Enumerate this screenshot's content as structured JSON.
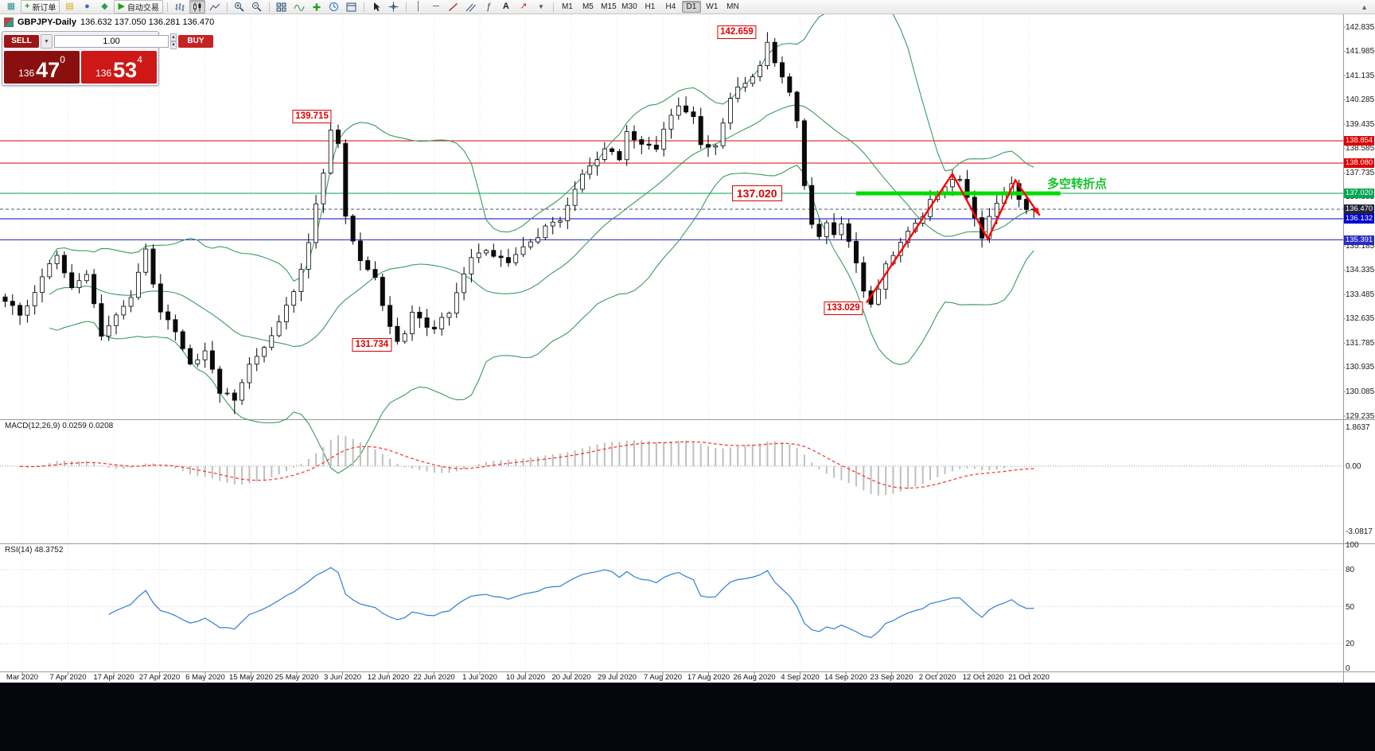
{
  "toolbar": {
    "new_order_label": "新订单",
    "autotrading_label": "自动交易",
    "timeframes": [
      "M1",
      "M5",
      "M15",
      "M30",
      "H1",
      "H4",
      "D1",
      "W1",
      "MN"
    ],
    "active_timeframe": "D1"
  },
  "symbol_bar": {
    "title": "GBPJPY-Daily",
    "ohlc": "136.632 137.050 136.281 136.470"
  },
  "trade_panel": {
    "sell_label": "SELL",
    "buy_label": "BUY",
    "volume": "1.00",
    "sell_price": {
      "prefix": "136",
      "main": "47",
      "sup": "0"
    },
    "buy_price": {
      "prefix": "136",
      "main": "53",
      "sup": "4"
    }
  },
  "indicators": {
    "macd_label": "MACD(12,26,9) 0.0259 0.0208",
    "rsi_label": "RSI(14) 48.3752"
  },
  "levels": [
    {
      "price": 138.854,
      "color": "#e00000",
      "type": "line"
    },
    {
      "price": 138.08,
      "color": "#e00000",
      "type": "line"
    },
    {
      "price": 137.02,
      "color": "#00a651",
      "type": "line"
    },
    {
      "price": 136.47,
      "color": "#2e2e4e",
      "type": "current"
    },
    {
      "price": 136.132,
      "color": "#0000cf",
      "type": "line"
    },
    {
      "price": 135.391,
      "color": "#2a2ac8",
      "type": "line"
    }
  ],
  "annotations": {
    "turning_point_text": "多空转折点",
    "callouts": [
      {
        "text": "142.659",
        "i": 102.6,
        "price": 142.659,
        "side": "left",
        "large": false
      },
      {
        "text": "139.715",
        "i": 45.2,
        "price": 139.715,
        "side": "left",
        "large": false
      },
      {
        "text": "137.020",
        "i": 98.0,
        "price": 137.02,
        "side": "right",
        "large": true
      },
      {
        "text": "133.029",
        "i": 117.0,
        "price": 133.029,
        "side": "left",
        "large": false
      },
      {
        "text": "131.734",
        "i": 53.3,
        "price": 131.734,
        "side": "left",
        "large": false
      }
    ],
    "zigzag": [
      {
        "i": 116.4,
        "p": 133.2
      },
      {
        "i": 128.0,
        "p": 137.7
      },
      {
        "i": 132.8,
        "p": 135.42
      },
      {
        "i": 136.5,
        "p": 137.48
      },
      {
        "i": 139.8,
        "p": 136.25
      }
    ],
    "support_bar": {
      "i_start": 115.0,
      "i_end": 142.6,
      "price": 137.02
    }
  },
  "axes": {
    "price_ticks": [
      142.835,
      141.985,
      141.135,
      140.285,
      139.435,
      138.585,
      137.735,
      136.885,
      136.035,
      135.185,
      134.335,
      133.485,
      132.635,
      131.785,
      130.935,
      130.085,
      129.235
    ],
    "macd_ticks": [
      {
        "text": "1.8637",
        "value": 1.8637
      },
      {
        "text": "0.00",
        "value": 0
      },
      {
        "text": "-3.0817",
        "value": -3.0817
      }
    ],
    "rsi_ticks": [
      100,
      80,
      50,
      20,
      0
    ],
    "dates": [
      "Mar 2020",
      "7 Apr 2020",
      "17 Apr 2020",
      "27 Apr 2020",
      "6 May 2020",
      "15 May 2020",
      "25 May 2020",
      "3 Jun 2020",
      "12 Jun 2020",
      "22 Jun 2020",
      "1 Jul 2020",
      "10 Jul 2020",
      "20 Jul 2020",
      "29 Jul 2020",
      "7 Aug 2020",
      "17 Aug 2020",
      "26 Aug 2020",
      "4 Sep 2020",
      "14 Sep 2020",
      "23 Sep 2020",
      "2 Oct 2020",
      "12 Oct 2020",
      "21 Oct 2020"
    ]
  },
  "chart_data": {
    "type": "candlestick",
    "symbol": "GBPJPY",
    "period": "Daily",
    "title": "GBPJPY-Daily",
    "ylim": [
      129.235,
      142.835
    ],
    "candle_count": 140,
    "close_keypoints": [
      [
        0,
        133.3
      ],
      [
        2,
        132.7
      ],
      [
        4,
        133.6
      ],
      [
        6,
        134.5
      ],
      [
        7,
        134.9
      ],
      [
        9,
        133.8
      ],
      [
        11,
        134.2
      ],
      [
        13,
        132.1
      ],
      [
        15,
        132.7
      ],
      [
        17,
        133.4
      ],
      [
        19,
        135.0
      ],
      [
        21,
        132.9
      ],
      [
        23,
        132.2
      ],
      [
        25,
        131.0
      ],
      [
        27,
        131.5
      ],
      [
        29,
        130.1
      ],
      [
        31,
        129.8
      ],
      [
        33,
        131.1
      ],
      [
        35,
        131.7
      ],
      [
        37,
        132.6
      ],
      [
        39,
        133.5
      ],
      [
        41,
        135.3
      ],
      [
        42,
        136.7
      ],
      [
        43,
        137.8
      ],
      [
        44,
        139.2
      ],
      [
        45,
        138.8
      ],
      [
        46,
        136.3
      ],
      [
        47,
        135.3
      ],
      [
        48,
        134.6
      ],
      [
        50,
        134.0
      ],
      [
        51,
        133.0
      ],
      [
        52,
        132.4
      ],
      [
        53,
        131.9
      ],
      [
        54,
        132.1
      ],
      [
        55,
        132.9
      ],
      [
        57,
        132.4
      ],
      [
        58,
        132.3
      ],
      [
        60,
        132.9
      ],
      [
        62,
        134.1
      ],
      [
        63,
        134.8
      ],
      [
        65,
        135.1
      ],
      [
        67,
        134.7
      ],
      [
        68,
        134.5
      ],
      [
        70,
        135.1
      ],
      [
        72,
        135.5
      ],
      [
        73,
        135.9
      ],
      [
        75,
        136.1
      ],
      [
        76,
        136.6
      ],
      [
        78,
        137.6
      ],
      [
        80,
        138.3
      ],
      [
        81,
        138.6
      ],
      [
        83,
        138.2
      ],
      [
        84,
        139.2
      ],
      [
        86,
        138.8
      ],
      [
        88,
        138.5
      ],
      [
        89,
        139.2
      ],
      [
        91,
        140.1
      ],
      [
        93,
        139.6
      ],
      [
        94,
        138.7
      ],
      [
        96,
        138.7
      ],
      [
        97,
        139.5
      ],
      [
        98,
        140.4
      ],
      [
        100,
        140.9
      ],
      [
        102,
        141.5
      ],
      [
        103,
        142.2
      ],
      [
        104,
        141.5
      ],
      [
        105,
        141.0
      ],
      [
        106,
        140.5
      ],
      [
        107,
        139.6
      ],
      [
        108,
        137.2
      ],
      [
        109,
        135.9
      ],
      [
        110,
        135.6
      ],
      [
        111,
        136.1
      ],
      [
        112,
        135.6
      ],
      [
        113,
        135.9
      ],
      [
        114,
        135.4
      ],
      [
        115,
        134.5
      ],
      [
        116,
        133.7
      ],
      [
        117,
        133.2
      ],
      [
        118,
        133.6
      ],
      [
        119,
        134.5
      ],
      [
        120,
        134.9
      ],
      [
        121,
        135.3
      ],
      [
        123,
        135.9
      ],
      [
        124,
        136.2
      ],
      [
        125,
        136.8
      ],
      [
        127,
        137.3
      ],
      [
        128,
        137.6
      ],
      [
        129,
        137.4
      ],
      [
        130,
        136.8
      ],
      [
        131,
        136.1
      ],
      [
        132,
        135.5
      ],
      [
        133,
        136.2
      ],
      [
        134,
        136.6
      ],
      [
        135,
        136.9
      ],
      [
        136,
        137.3
      ],
      [
        137,
        136.8
      ],
      [
        138,
        136.5
      ],
      [
        139,
        136.47
      ]
    ],
    "extremes": [
      {
        "i": 44,
        "high": 139.715
      },
      {
        "i": 103,
        "high": 142.659
      },
      {
        "i": 31,
        "low": 129.3
      },
      {
        "i": 53,
        "low": 131.734
      },
      {
        "i": 117,
        "low": 133.029
      }
    ],
    "bollinger": {
      "period": 20,
      "deviation": 2
    },
    "macd": {
      "fast": 12,
      "slow": 26,
      "signal": 9
    },
    "rsi": {
      "period": 14
    }
  }
}
